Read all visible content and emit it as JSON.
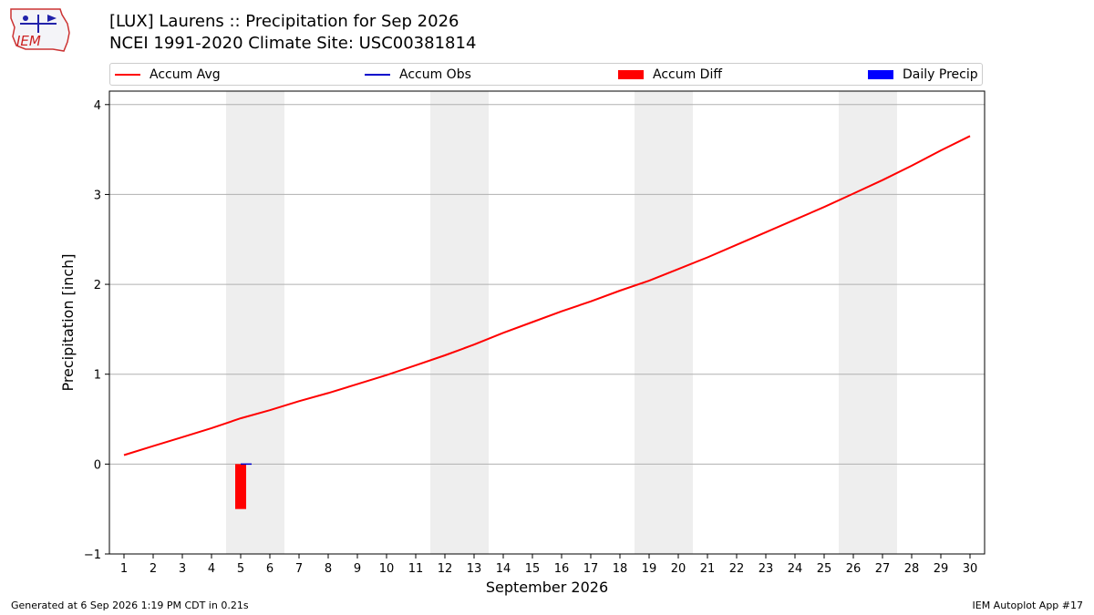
{
  "header": {
    "title_line1": "[LUX] Laurens :: Precipitation for Sep 2026",
    "title_line2": "NCEI 1991-2020 Climate Site: USC00381814"
  },
  "logo": {
    "text": "IEM",
    "icon": "iem-logo-icon"
  },
  "footer": {
    "left": "Generated at 6 Sep 2026 1:19 PM CDT in 0.21s",
    "right": "IEM Autoplot App #17"
  },
  "colors": {
    "accum_avg": "#ff0000",
    "accum_obs": "#0000cc",
    "accum_diff": "#ff0000",
    "daily_precip": "#0000ff",
    "weekend_shade": "#eeeeee",
    "grid": "#b0b0b0"
  },
  "chart_data": {
    "type": "line",
    "xlabel": "September 2026",
    "ylabel": "Precipitation [inch]",
    "ylim": [
      -1,
      4.15
    ],
    "xlim": [
      0.5,
      30.5
    ],
    "yticks": [
      -1,
      0,
      1,
      2,
      3,
      4
    ],
    "ytick_labels": [
      "−1",
      "0",
      "1",
      "2",
      "3",
      "4"
    ],
    "x": [
      1,
      2,
      3,
      4,
      5,
      6,
      7,
      8,
      9,
      10,
      11,
      12,
      13,
      14,
      15,
      16,
      17,
      18,
      19,
      20,
      21,
      22,
      23,
      24,
      25,
      26,
      27,
      28,
      29,
      30
    ],
    "grid": "horizontal",
    "legend_position": "top",
    "legend": [
      "Accum Avg",
      "Accum Obs",
      "Accum Diff",
      "Daily Precip"
    ],
    "weekend_spans": [
      [
        4.5,
        6.5
      ],
      [
        11.5,
        13.5
      ],
      [
        18.5,
        20.5
      ],
      [
        25.5,
        27.5
      ]
    ],
    "series": [
      {
        "name": "Accum Avg",
        "kind": "line",
        "values": [
          0.1,
          0.2,
          0.3,
          0.4,
          0.51,
          0.6,
          0.7,
          0.79,
          0.89,
          0.99,
          1.1,
          1.21,
          1.33,
          1.46,
          1.58,
          1.7,
          1.81,
          1.93,
          2.04,
          2.17,
          2.3,
          2.44,
          2.58,
          2.72,
          2.86,
          3.01,
          3.16,
          3.32,
          3.49,
          3.65
        ]
      },
      {
        "name": "Accum Obs",
        "kind": "line",
        "x": [
          5
        ],
        "values": [
          0.0
        ]
      },
      {
        "name": "Accum Diff",
        "kind": "bar",
        "x": [
          5
        ],
        "values": [
          -0.5
        ]
      },
      {
        "name": "Daily Precip",
        "kind": "bar",
        "x": [
          5
        ],
        "values": [
          0.0
        ]
      }
    ]
  }
}
